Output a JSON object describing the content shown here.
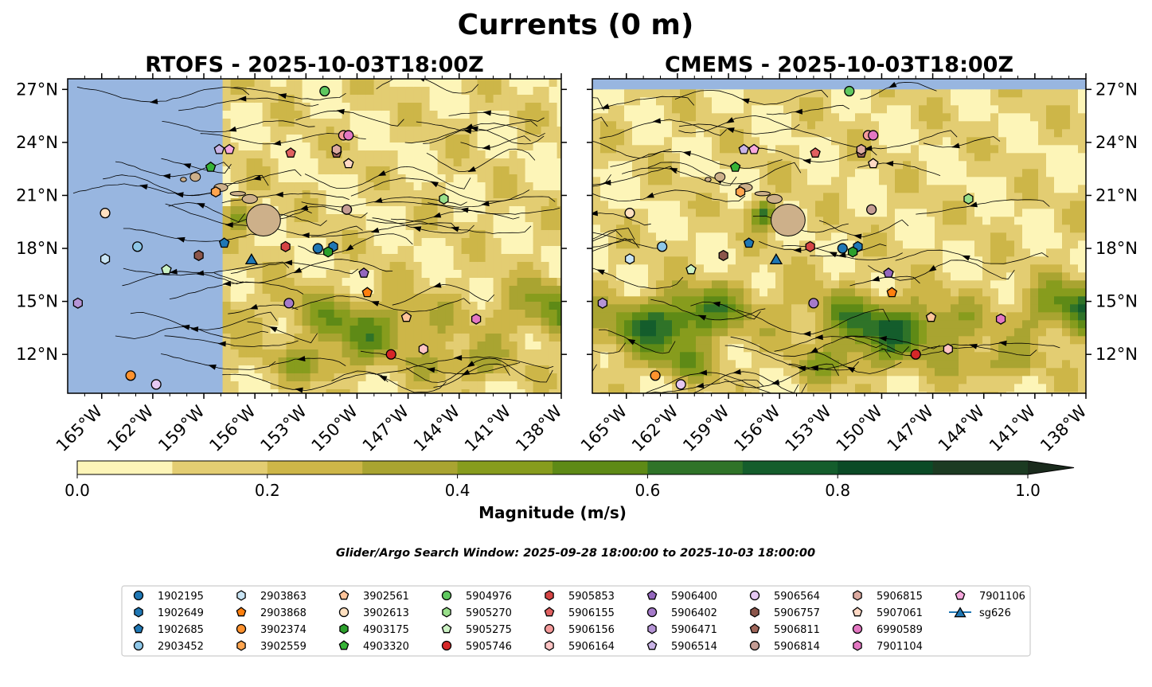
{
  "title": "Currents (0 m)",
  "panels": [
    {
      "title": "RTOFS - 2025-10-03T18:00Z",
      "model": "RTOFS"
    },
    {
      "title": "CMEMS - 2025-10-03T18:00Z",
      "model": "CMEMS"
    }
  ],
  "colorbar": {
    "label": "Magnitude (m/s)",
    "ticks": [
      "0.0",
      "0.2",
      "0.4",
      "0.6",
      "0.8",
      "1.0"
    ],
    "levels": [
      0,
      0.1,
      0.2,
      0.3,
      0.4,
      0.5,
      0.6,
      0.7,
      0.8,
      0.9,
      1.0
    ],
    "colors": [
      "#fdf5b8",
      "#e3cd72",
      "#cdb648",
      "#a9a431",
      "#879c1d",
      "#5e8a16",
      "#2f7328",
      "#145d2c",
      "#0b4a26",
      "#1c3b22",
      "#1a2a1c"
    ],
    "extend": "max"
  },
  "window_text": "Glider/Argo Search Window: 2025-09-28 18:00:00 to 2025-10-03 18:00:00",
  "colors": {
    "land": "#cdb08a",
    "masked_ocean": "#98b6e0"
  },
  "chart_data": {
    "type": "map",
    "lon_range": [
      -167,
      -138
    ],
    "lat_range": [
      9.8,
      27.6
    ],
    "lon_ticks": [
      "165°W",
      "162°W",
      "159°W",
      "156°W",
      "153°W",
      "150°W",
      "147°W",
      "144°W",
      "141°W",
      "138°W"
    ],
    "lat_ticks": [
      "27°N",
      "24°N",
      "21°N",
      "18°N",
      "15°N",
      "12°N"
    ],
    "lon_tick_values": [
      -165,
      -162,
      -159,
      -156,
      -153,
      -150,
      -147,
      -144,
      -141,
      -138
    ],
    "lat_tick_values": [
      27,
      24,
      21,
      18,
      15,
      12
    ],
    "rtofs_data_west_edge_lon": -157.9,
    "cmems_data_north_edge_lat": 27.0,
    "platforms": [
      {
        "id": "1902195",
        "marker": "o",
        "color": "#1f77b4",
        "lon": -152.3,
        "lat": 18.0
      },
      {
        "id": "1902649",
        "marker": "h",
        "color": "#1f77b4",
        "lon": -151.4,
        "lat": 18.1
      },
      {
        "id": "1902685",
        "marker": "p",
        "color": "#1f77b4",
        "lon": -157.8,
        "lat": 18.3
      },
      {
        "id": "2903452",
        "marker": "o",
        "color": "#8ec7e8",
        "lon": -162.9,
        "lat": 18.1
      },
      {
        "id": "2903863",
        "marker": "h",
        "color": "#c8e4f4",
        "lon": -164.8,
        "lat": 17.4
      },
      {
        "id": "2903868",
        "marker": "p",
        "color": "#ff7f0e",
        "lon": -149.4,
        "lat": 15.5
      },
      {
        "id": "3902374",
        "marker": "o",
        "color": "#ff922e",
        "lon": -163.3,
        "lat": 10.8
      },
      {
        "id": "3902559",
        "marker": "h",
        "color": "#ffa54f",
        "lon": -158.3,
        "lat": 21.2
      },
      {
        "id": "3902561",
        "marker": "p",
        "color": "#ffc49a",
        "lon": -147.1,
        "lat": 14.1
      },
      {
        "id": "3902613",
        "marker": "o",
        "color": "#ffe0c0",
        "lon": -164.8,
        "lat": 20.0
      },
      {
        "id": "4903175",
        "marker": "h",
        "color": "#2ca02c",
        "lon": -151.7,
        "lat": 17.8
      },
      {
        "id": "4903320",
        "marker": "p",
        "color": "#36b336",
        "lon": -158.6,
        "lat": 22.6
      },
      {
        "id": "5904976",
        "marker": "o",
        "color": "#5fc85f",
        "lon": -151.9,
        "lat": 26.9
      },
      {
        "id": "5905270",
        "marker": "h",
        "color": "#98df8a",
        "lon": -144.9,
        "lat": 20.8
      },
      {
        "id": "5905275",
        "marker": "p",
        "color": "#ccf2c4",
        "lon": -161.2,
        "lat": 16.8
      },
      {
        "id": "5905746",
        "marker": "o",
        "color": "#d62728",
        "lon": -148.0,
        "lat": 12.0
      },
      {
        "id": "5905853",
        "marker": "h",
        "color": "#d64545",
        "lon": -154.2,
        "lat": 18.1
      },
      {
        "id": "5906155",
        "marker": "p",
        "color": "#e06060",
        "lon": -153.9,
        "lat": 23.4
      },
      {
        "id": "5906156",
        "marker": "o",
        "color": "#f59a9a",
        "lon": -150.8,
        "lat": 24.4
      },
      {
        "id": "5906164",
        "marker": "h",
        "color": "#ffc4c4",
        "lon": -146.1,
        "lat": 12.3
      },
      {
        "id": "5906400",
        "marker": "p",
        "color": "#9467bd",
        "lon": -149.6,
        "lat": 16.6
      },
      {
        "id": "5906402",
        "marker": "o",
        "color": "#a57ac9",
        "lon": -154.0,
        "lat": 14.9
      },
      {
        "id": "5906471",
        "marker": "h",
        "color": "#b594d6",
        "lon": -166.4,
        "lat": 14.9
      },
      {
        "id": "5906514",
        "marker": "p",
        "color": "#c9b3e6",
        "lon": -158.1,
        "lat": 23.6
      },
      {
        "id": "5906564",
        "marker": "o",
        "color": "#e5c8f2",
        "lon": -161.8,
        "lat": 10.3
      },
      {
        "id": "5906757",
        "marker": "h",
        "color": "#8c564b",
        "lon": -159.3,
        "lat": 17.6
      },
      {
        "id": "5906811",
        "marker": "p",
        "color": "#a0665a",
        "lon": -151.2,
        "lat": 23.4
      },
      {
        "id": "5906814",
        "marker": "o",
        "color": "#c49c94",
        "lon": -150.6,
        "lat": 20.2
      },
      {
        "id": "5906815",
        "marker": "h",
        "color": "#dcaaa0",
        "lon": -151.2,
        "lat": 23.6
      },
      {
        "id": "5907061",
        "marker": "p",
        "color": "#ffd8c4",
        "lon": -150.5,
        "lat": 22.8
      },
      {
        "id": "6990589",
        "marker": "o",
        "color": "#e377c2",
        "lon": -150.5,
        "lat": 24.4
      },
      {
        "id": "7901104",
        "marker": "h",
        "color": "#e377c2",
        "lon": -143.0,
        "lat": 14.0
      },
      {
        "id": "7901106",
        "marker": "p",
        "color": "#f7a8dd",
        "lon": -157.5,
        "lat": 23.6
      },
      {
        "id": "sg626",
        "marker": "^",
        "color": "#1f77b4",
        "lon": -156.2,
        "lat": 17.4
      }
    ]
  },
  "legend_items": [
    {
      "id": "1902195",
      "marker": "o",
      "color": "#1f77b4"
    },
    {
      "id": "1902649",
      "marker": "h",
      "color": "#1f77b4"
    },
    {
      "id": "1902685",
      "marker": "p",
      "color": "#1f77b4"
    },
    {
      "id": "2903452",
      "marker": "o",
      "color": "#8ec7e8"
    },
    {
      "id": "2903863",
      "marker": "h",
      "color": "#c8e4f4"
    },
    {
      "id": "2903868",
      "marker": "p",
      "color": "#ff7f0e"
    },
    {
      "id": "3902374",
      "marker": "o",
      "color": "#ff922e"
    },
    {
      "id": "3902559",
      "marker": "h",
      "color": "#ffa54f"
    },
    {
      "id": "3902561",
      "marker": "p",
      "color": "#ffc49a"
    },
    {
      "id": "3902613",
      "marker": "o",
      "color": "#ffe0c0"
    },
    {
      "id": "4903175",
      "marker": "h",
      "color": "#2ca02c"
    },
    {
      "id": "4903320",
      "marker": "p",
      "color": "#36b336"
    },
    {
      "id": "5904976",
      "marker": "o",
      "color": "#5fc85f"
    },
    {
      "id": "5905270",
      "marker": "h",
      "color": "#98df8a"
    },
    {
      "id": "5905275",
      "marker": "p",
      "color": "#ccf2c4"
    },
    {
      "id": "5905746",
      "marker": "o",
      "color": "#d62728"
    },
    {
      "id": "5905853",
      "marker": "h",
      "color": "#d64545"
    },
    {
      "id": "5906155",
      "marker": "p",
      "color": "#e06060"
    },
    {
      "id": "5906156",
      "marker": "o",
      "color": "#f59a9a"
    },
    {
      "id": "5906164",
      "marker": "h",
      "color": "#ffc4c4"
    },
    {
      "id": "5906400",
      "marker": "p",
      "color": "#9467bd"
    },
    {
      "id": "5906402",
      "marker": "o",
      "color": "#a57ac9"
    },
    {
      "id": "5906471",
      "marker": "h",
      "color": "#b594d6"
    },
    {
      "id": "5906514",
      "marker": "p",
      "color": "#c9b3e6"
    },
    {
      "id": "5906564",
      "marker": "o",
      "color": "#e5c8f2"
    },
    {
      "id": "5906757",
      "marker": "h",
      "color": "#8c564b"
    },
    {
      "id": "5906811",
      "marker": "p",
      "color": "#a0665a"
    },
    {
      "id": "5906814",
      "marker": "o",
      "color": "#c49c94"
    },
    {
      "id": "5906815",
      "marker": "h",
      "color": "#dcaaa0"
    },
    {
      "id": "5907061",
      "marker": "p",
      "color": "#ffd8c4"
    },
    {
      "id": "6990589",
      "marker": "o",
      "color": "#e377c2"
    },
    {
      "id": "7901104",
      "marker": "h",
      "color": "#e377c2"
    },
    {
      "id": "7901106",
      "marker": "p",
      "color": "#f7a8dd"
    },
    {
      "id": "sg626",
      "marker": "^",
      "color": "#1f77b4"
    }
  ]
}
